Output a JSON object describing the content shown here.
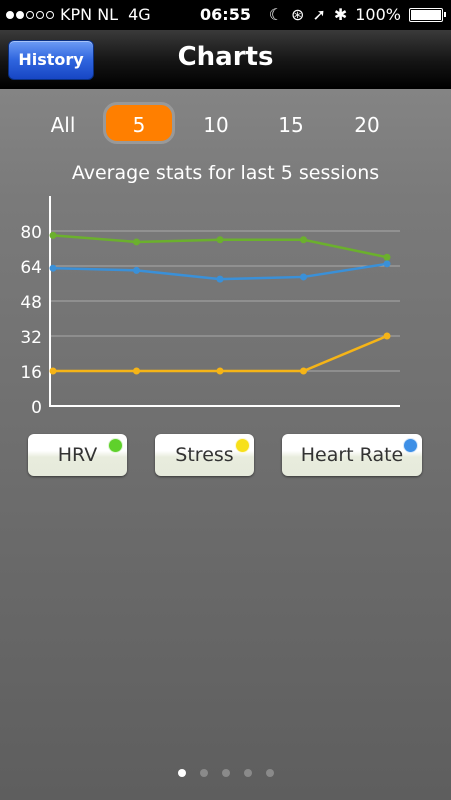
{
  "status_bar": {
    "carrier": "KPN NL",
    "network": "4G",
    "time": "06:55",
    "battery": "100%",
    "signal_bars": 2
  },
  "nav": {
    "back_label": "History",
    "title": "Charts"
  },
  "segments": [
    {
      "label": "All",
      "selected": false
    },
    {
      "label": "5",
      "selected": true
    },
    {
      "label": "10",
      "selected": false
    },
    {
      "label": "15",
      "selected": false
    },
    {
      "label": "20",
      "selected": false
    }
  ],
  "chart_data": {
    "type": "line",
    "title": "Average stats for last 5 sessions",
    "x": [
      1,
      2,
      3,
      4,
      5
    ],
    "ylim": [
      0,
      96
    ],
    "yticks": [
      "80",
      "64",
      "48",
      "32",
      "16",
      "0"
    ],
    "grid": true,
    "series": [
      {
        "name": "HRV",
        "color": "#6bb02d",
        "values": [
          78,
          75,
          76,
          76,
          68
        ]
      },
      {
        "name": "Heart Rate",
        "color": "#3a90d8",
        "values": [
          63,
          62,
          58,
          59,
          65
        ]
      },
      {
        "name": "Stress",
        "color": "#f5b417",
        "values": [
          16,
          16,
          16,
          16,
          32
        ]
      }
    ]
  },
  "legend": [
    {
      "label": "HRV",
      "color": "#5fd12b"
    },
    {
      "label": "Stress",
      "color": "#f7e01a"
    },
    {
      "label": "Heart Rate",
      "color": "#3d8fe6"
    }
  ],
  "pager": {
    "count": 5,
    "active": 0
  }
}
